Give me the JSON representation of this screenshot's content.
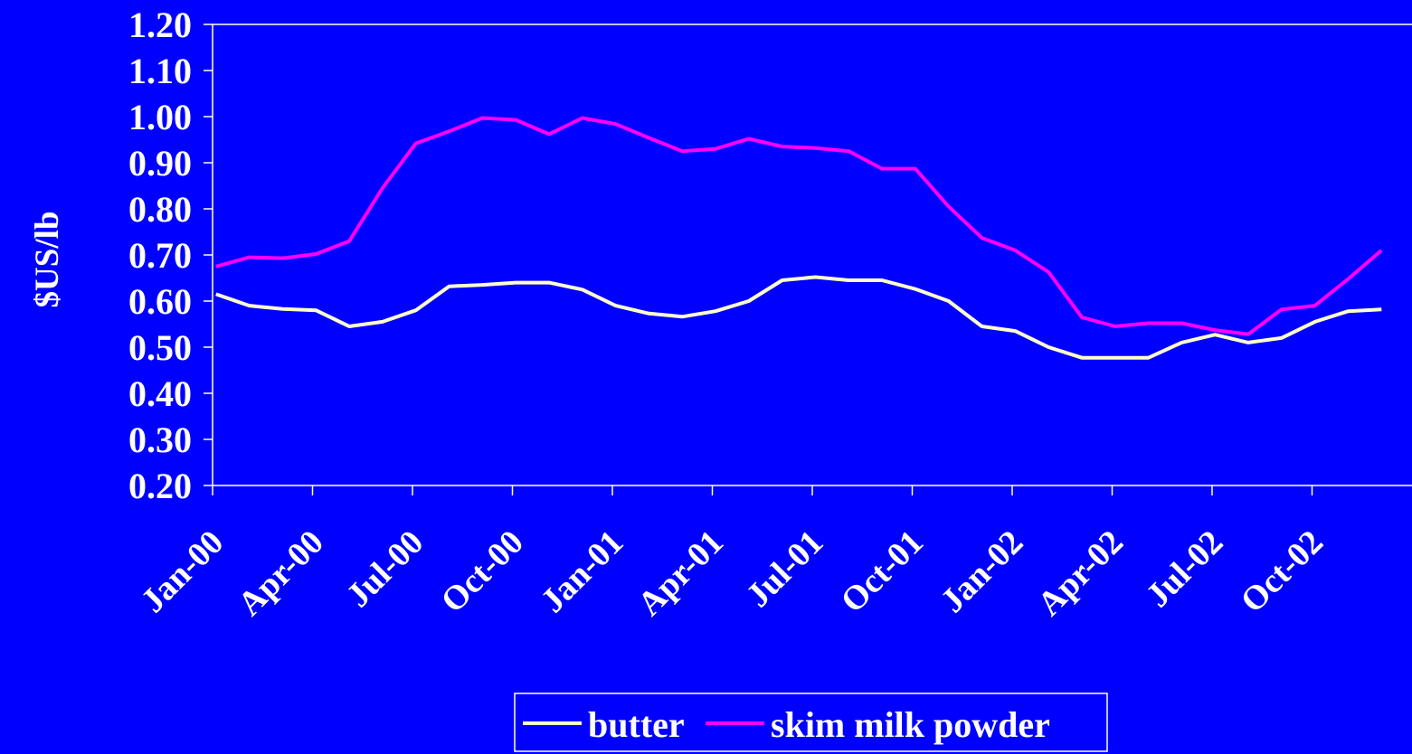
{
  "colors": {
    "background": "#0000FF",
    "foreground": "#FFFFFF",
    "butter": "#FFFFCC",
    "skim_milk_powder": "#FF00FF"
  },
  "chart_data": {
    "type": "line",
    "title": "",
    "xlabel": "",
    "ylabel": "$US/lb",
    "ylim": [
      0.2,
      1.2
    ],
    "yticks": [
      "0.20",
      "0.30",
      "0.40",
      "0.50",
      "0.60",
      "0.70",
      "0.80",
      "0.90",
      "1.00",
      "1.10",
      "1.20"
    ],
    "grid": false,
    "legend_position": "bottom-center",
    "x": [
      "Jan-00",
      "Feb-00",
      "Mar-00",
      "Apr-00",
      "May-00",
      "Jun-00",
      "Jul-00",
      "Aug-00",
      "Sep-00",
      "Oct-00",
      "Nov-00",
      "Dec-00",
      "Jan-01",
      "Feb-01",
      "Mar-01",
      "Apr-01",
      "May-01",
      "Jun-01",
      "Jul-01",
      "Aug-01",
      "Sep-01",
      "Oct-01",
      "Nov-01",
      "Dec-01",
      "Jan-02",
      "Feb-02",
      "Mar-02",
      "Apr-02",
      "May-02",
      "Jun-02",
      "Jul-02",
      "Aug-02",
      "Sep-02",
      "Oct-02",
      "Nov-02",
      "Dec-02"
    ],
    "xtick_labels": [
      "Jan-00",
      "Apr-00",
      "Jul-00",
      "Oct-00",
      "Jan-01",
      "Apr-01",
      "Jul-01",
      "Oct-01",
      "Jan-02",
      "Apr-02",
      "Jul-02",
      "Oct-02"
    ],
    "series": [
      {
        "name": "butter",
        "color": "#FFFFCC",
        "values": [
          0.615,
          0.59,
          0.583,
          0.58,
          0.545,
          0.555,
          0.58,
          0.632,
          0.635,
          0.64,
          0.64,
          0.625,
          0.59,
          0.573,
          0.566,
          0.578,
          0.6,
          0.645,
          0.652,
          0.645,
          0.645,
          0.626,
          0.6,
          0.545,
          0.535,
          0.5,
          0.477,
          0.477,
          0.477,
          0.51,
          0.527,
          0.51,
          0.52,
          0.555,
          0.578,
          0.582
        ]
      },
      {
        "name": "skim milk powder",
        "color": "#FF00FF",
        "values": [
          0.675,
          0.695,
          0.693,
          0.702,
          0.73,
          0.845,
          0.942,
          0.968,
          0.997,
          0.993,
          0.962,
          0.997,
          0.984,
          0.954,
          0.925,
          0.93,
          0.952,
          0.935,
          0.932,
          0.925,
          0.887,
          0.887,
          0.805,
          0.737,
          0.71,
          0.663,
          0.565,
          0.545,
          0.552,
          0.552,
          0.537,
          0.528,
          0.582,
          0.59,
          0.648,
          0.71
        ]
      }
    ]
  },
  "legend": {
    "items": [
      {
        "label": "butter",
        "color": "#FFFFCC"
      },
      {
        "label": "skim milk powder",
        "color": "#FF00FF"
      }
    ]
  }
}
